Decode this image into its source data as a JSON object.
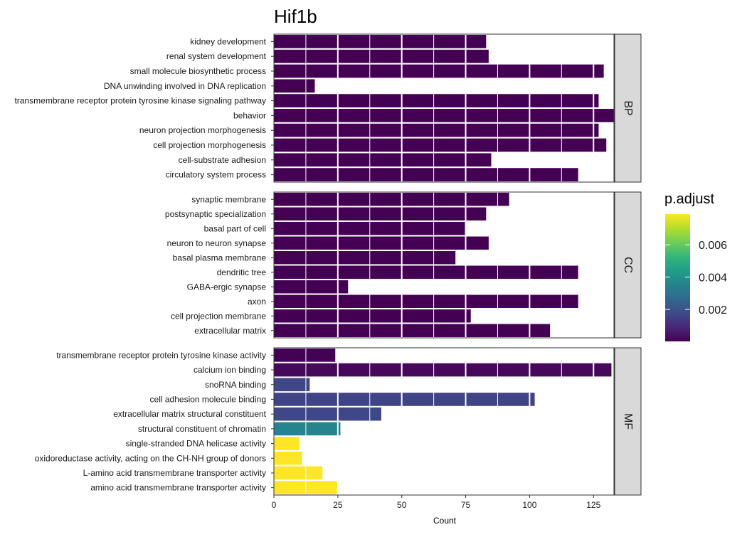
{
  "chart_data": {
    "type": "bar",
    "orientation": "horizontal",
    "title": "Hif1b",
    "xlabel": "Count",
    "ylabel": "",
    "xlim": [
      0,
      133
    ],
    "x_ticks": [
      0,
      25,
      50,
      75,
      100,
      125
    ],
    "grid": true,
    "facets": [
      {
        "label": "BP",
        "categories": [
          "kidney development",
          "renal system development",
          "small molecule biosynthetic process",
          "DNA unwinding involved in DNA replication",
          "transmembrane receptor protein tyrosine kinase signaling pathway",
          "behavior",
          "neuron projection morphogenesis",
          "cell projection morphogenesis",
          "cell-substrate adhesion",
          "circulatory system process"
        ],
        "values": [
          83,
          84,
          129,
          16,
          127,
          133,
          127,
          130,
          85,
          119
        ],
        "p_adjust": [
          2e-05,
          2e-05,
          2e-05,
          2e-05,
          2e-05,
          2e-05,
          2e-05,
          2e-05,
          2e-05,
          2e-05
        ]
      },
      {
        "label": "CC",
        "categories": [
          "synaptic membrane",
          "postsynaptic specialization",
          "basal part of cell",
          "neuron to neuron synapse",
          "basal plasma membrane",
          "dendritic tree",
          "GABA-ergic synapse",
          "axon",
          "cell projection membrane",
          "extracellular matrix"
        ],
        "values": [
          92,
          83,
          75,
          84,
          71,
          119,
          29,
          119,
          77,
          108
        ],
        "p_adjust": [
          2e-05,
          2e-05,
          2e-05,
          2e-05,
          2e-05,
          2e-05,
          2e-05,
          2e-05,
          2e-05,
          2e-05
        ]
      },
      {
        "label": "MF",
        "categories": [
          "transmembrane receptor protein tyrosine kinase activity",
          "calcium ion binding",
          "snoRNA binding",
          "cell adhesion molecule binding",
          "extracellular matrix structural constituent",
          "structural constituent of chromatin",
          "single-stranded DNA helicase activity",
          "oxidoreductase activity, acting on the CH-NH group of donors",
          "L-amino acid transmembrane transporter activity",
          "amino acid transmembrane transporter activity"
        ],
        "values": [
          24,
          132,
          14,
          102,
          42,
          26,
          10,
          11,
          19,
          25
        ],
        "p_adjust": [
          5e-05,
          0.0002,
          0.0017,
          0.0016,
          0.0017,
          0.0036,
          0.0079,
          0.0079,
          0.0079,
          0.0079
        ]
      }
    ],
    "legend": {
      "title": "p.adjust",
      "position": "right",
      "range": [
        2e-05,
        0.0079
      ],
      "ticks": [
        0.002,
        0.004,
        0.006
      ],
      "tick_labels": [
        "0.002",
        "0.004",
        "0.006"
      ],
      "colors": [
        "#440154",
        "#482878",
        "#3E4A89",
        "#31688E",
        "#26828E",
        "#1F9E89",
        "#35B779",
        "#6DCD59",
        "#B4DE2C",
        "#FDE725"
      ]
    },
    "panel_strip_color": "#D9D9D9",
    "gridline_color": "#FFFFFF"
  }
}
